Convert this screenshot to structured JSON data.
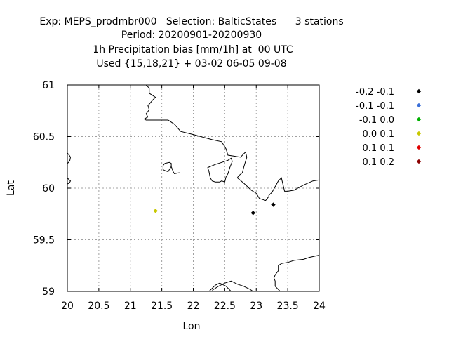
{
  "chart_data": {
    "type": "scatter",
    "title_lines": [
      "Exp: MEPS_prodmbr000   Selection: BalticStates      3 stations",
      "Period: 20200901-20200930",
      "1h Precipitation bias [mm/1h] at  00 UTC",
      "Used {15,18,21} + 03-02 06-05 09-08"
    ],
    "xlabel": "Lon",
    "ylabel": "Lat",
    "xlim": [
      20,
      24
    ],
    "ylim": [
      59,
      61
    ],
    "xticks": [
      {
        "value": 20,
        "label": "20"
      },
      {
        "value": 20.5,
        "label": "20.5"
      },
      {
        "value": 21,
        "label": "21"
      },
      {
        "value": 21.5,
        "label": "21.5"
      },
      {
        "value": 22,
        "label": "22"
      },
      {
        "value": 22.5,
        "label": "22.5"
      },
      {
        "value": 23,
        "label": "23"
      },
      {
        "value": 23.5,
        "label": "23.5"
      },
      {
        "value": 24,
        "label": "24"
      }
    ],
    "yticks": [
      {
        "value": 59,
        "label": "59"
      },
      {
        "value": 59.5,
        "label": "59.5"
      },
      {
        "value": 60,
        "label": "60"
      },
      {
        "value": 60.5,
        "label": "60.5"
      },
      {
        "value": 61,
        "label": "61"
      }
    ],
    "grid": true,
    "legend_position": "right",
    "legend": [
      {
        "label": "-0.2 -0.1",
        "color": "#000000"
      },
      {
        "label": "-0.1 -0.1",
        "color": "#3a6fd8"
      },
      {
        "label": "-0.1 0.0",
        "color": "#00b000"
      },
      {
        "label": "0.0 0.1",
        "color": "#c8c800"
      },
      {
        "label": "0.1 0.1",
        "color": "#e00000"
      },
      {
        "label": "0.1 0.2",
        "color": "#8b0000"
      }
    ],
    "points": [
      {
        "lon": 21.4,
        "lat": 59.78,
        "class": 3
      },
      {
        "lon": 22.95,
        "lat": 59.76,
        "class": 0
      },
      {
        "lon": 23.27,
        "lat": 59.84,
        "class": 0
      }
    ],
    "coastlines": [
      [
        [
          21.25,
          61.0
        ],
        [
          21.3,
          60.97
        ],
        [
          21.3,
          60.92
        ],
        [
          21.35,
          60.9
        ],
        [
          21.4,
          60.88
        ],
        [
          21.35,
          60.85
        ],
        [
          21.28,
          60.8
        ],
        [
          21.3,
          60.76
        ],
        [
          21.25,
          60.72
        ],
        [
          21.28,
          60.69
        ],
        [
          21.22,
          60.67
        ],
        [
          21.25,
          60.66
        ],
        [
          21.6,
          60.66
        ],
        [
          21.7,
          60.62
        ],
        [
          21.8,
          60.55
        ],
        [
          22.0,
          60.52
        ],
        [
          22.3,
          60.47
        ],
        [
          22.45,
          60.45
        ],
        [
          22.52,
          60.38
        ],
        [
          22.55,
          60.32
        ],
        [
          22.65,
          60.31
        ],
        [
          22.75,
          60.3
        ],
        [
          22.83,
          60.35
        ],
        [
          22.85,
          60.3
        ],
        [
          22.8,
          60.2
        ],
        [
          22.78,
          60.15
        ],
        [
          22.72,
          60.12
        ],
        [
          22.7,
          60.1
        ],
        [
          22.8,
          60.05
        ],
        [
          22.92,
          59.98
        ],
        [
          23.0,
          59.95
        ],
        [
          23.05,
          59.9
        ],
        [
          23.15,
          59.88
        ],
        [
          23.2,
          59.92
        ],
        [
          23.2,
          59.93
        ],
        [
          23.25,
          59.96
        ],
        [
          23.35,
          60.07
        ],
        [
          23.4,
          60.1
        ],
        [
          23.45,
          59.97
        ],
        [
          23.5,
          59.97
        ],
        [
          23.6,
          59.98
        ],
        [
          23.75,
          60.03
        ],
        [
          23.9,
          60.07
        ],
        [
          24.0,
          60.08
        ]
      ],
      [
        [
          22.52,
          60.11
        ],
        [
          22.5,
          60.06
        ],
        [
          22.45,
          60.07
        ],
        [
          22.42,
          60.06
        ],
        [
          22.35,
          60.06
        ],
        [
          22.3,
          60.07
        ],
        [
          22.27,
          60.1
        ],
        [
          22.25,
          60.16
        ],
        [
          22.23,
          60.2
        ],
        [
          22.35,
          60.23
        ],
        [
          22.45,
          60.25
        ],
        [
          22.55,
          60.27
        ],
        [
          22.6,
          60.29
        ],
        [
          22.62,
          60.26
        ],
        [
          22.58,
          60.2
        ],
        [
          22.55,
          60.14
        ],
        [
          22.52,
          60.11
        ]
      ],
      [
        [
          21.78,
          60.15
        ],
        [
          21.7,
          60.14
        ],
        [
          21.68,
          60.16
        ],
        [
          21.65,
          60.21
        ],
        [
          21.62,
          60.18
        ],
        [
          21.6,
          60.16
        ],
        [
          21.55,
          60.17
        ],
        [
          21.52,
          60.18
        ],
        [
          21.52,
          60.22
        ],
        [
          21.55,
          60.24
        ],
        [
          21.62,
          60.25
        ],
        [
          21.65,
          60.24
        ],
        [
          21.65,
          60.21
        ]
      ],
      [
        [
          20.0,
          60.34
        ],
        [
          20.03,
          60.32
        ],
        [
          20.05,
          60.3
        ],
        [
          20.04,
          60.27
        ],
        [
          20.02,
          60.25
        ],
        [
          20.0,
          60.24
        ]
      ],
      [
        [
          20.0,
          60.1
        ],
        [
          20.03,
          60.08
        ],
        [
          20.05,
          60.07
        ],
        [
          20.03,
          60.05
        ],
        [
          20.0,
          60.04
        ]
      ],
      [
        [
          22.6,
          59.0
        ],
        [
          22.52,
          59.05
        ],
        [
          22.42,
          59.08
        ],
        [
          22.35,
          59.06
        ],
        [
          22.3,
          59.03
        ],
        [
          22.25,
          59.0
        ]
      ],
      [
        [
          22.3,
          59.01
        ],
        [
          22.4,
          59.05
        ],
        [
          22.5,
          59.08
        ],
        [
          22.6,
          59.1
        ],
        [
          22.7,
          59.07
        ],
        [
          22.8,
          59.05
        ],
        [
          22.9,
          59.02
        ],
        [
          22.95,
          59.0
        ]
      ],
      [
        [
          23.38,
          59.0
        ],
        [
          23.3,
          59.05
        ],
        [
          23.3,
          59.1
        ],
        [
          23.28,
          59.13
        ],
        [
          23.3,
          59.16
        ],
        [
          23.35,
          59.2
        ],
        [
          23.35,
          59.25
        ],
        [
          23.4,
          59.27
        ],
        [
          23.5,
          59.28
        ],
        [
          23.6,
          59.3
        ],
        [
          23.75,
          59.31
        ],
        [
          23.85,
          59.33
        ],
        [
          24.0,
          59.35
        ]
      ],
      [
        [
          23.5,
          59.0
        ],
        [
          23.42,
          59.0
        ]
      ]
    ]
  }
}
